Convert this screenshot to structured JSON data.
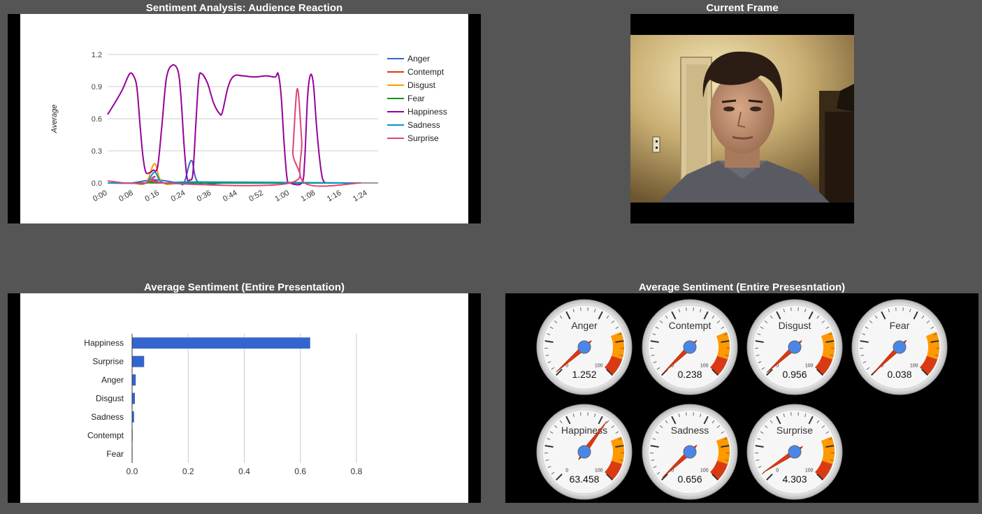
{
  "panels": {
    "line_title": "Sentiment Analysis: Audience Reaction",
    "frame_title": "Current Frame",
    "bar_title": "Average Sentiment (Entire Presentation)",
    "gauge_title": "Average Sentiment (Entire Presesntation)"
  },
  "colors": {
    "Anger": "#3366cc",
    "Contempt": "#dc3912",
    "Disgust": "#ff9900",
    "Fear": "#109618",
    "Happiness": "#990099",
    "Sadness": "#0099c6",
    "Surprise": "#dd4477",
    "bar": "#3366cc"
  },
  "chart_data": [
    {
      "type": "line",
      "title": "Sentiment Analysis: Audience Reaction",
      "ylabel": "Average",
      "xlabel": "",
      "ylim": [
        0,
        1.2
      ],
      "yticks": [
        "0.0",
        "0.3",
        "0.6",
        "0.9",
        "1.2"
      ],
      "xticks": [
        "0:00",
        "0:08",
        "0:16",
        "0:24",
        "0:36",
        "0:44",
        "0:52",
        "1:00",
        "1:08",
        "1:16",
        "1:24"
      ],
      "xrange_seconds": [
        0,
        92
      ],
      "legend_position": "right",
      "grid": true,
      "series": [
        {
          "name": "Anger",
          "points": [
            [
              0,
              0
            ],
            [
              8,
              0
            ],
            [
              16,
              0.03
            ],
            [
              24,
              0
            ],
            [
              26,
              0
            ],
            [
              28.5,
              0.21
            ],
            [
              31,
              0
            ],
            [
              40,
              0
            ],
            [
              60,
              0
            ],
            [
              70,
              0
            ],
            [
              74,
              0
            ],
            [
              78,
              0
            ],
            [
              86,
              0
            ]
          ]
        },
        {
          "name": "Contempt",
          "points": [
            [
              0,
              0
            ],
            [
              8,
              0
            ],
            [
              13,
              0
            ],
            [
              16,
              0.02
            ],
            [
              19,
              0
            ],
            [
              30,
              0
            ],
            [
              86,
              0
            ]
          ]
        },
        {
          "name": "Disgust",
          "points": [
            [
              0,
              0
            ],
            [
              8,
              0
            ],
            [
              13,
              0
            ],
            [
              16,
              0.18
            ],
            [
              19,
              0
            ],
            [
              30,
              0
            ],
            [
              86,
              0
            ]
          ]
        },
        {
          "name": "Fear",
          "points": [
            [
              0,
              0
            ],
            [
              13,
              0
            ],
            [
              16,
              0.01
            ],
            [
              19,
              0
            ],
            [
              86,
              0
            ]
          ]
        },
        {
          "name": "Happiness",
          "points": [
            [
              0,
              0.64
            ],
            [
              2.5,
              0.75
            ],
            [
              5,
              0.87
            ],
            [
              7.5,
              1.02
            ],
            [
              9,
              0.99
            ],
            [
              10,
              0.88
            ],
            [
              11,
              0.55
            ],
            [
              12,
              0.25
            ],
            [
              13,
              0.1
            ],
            [
              14.5,
              0.1
            ],
            [
              15.5,
              0.12
            ],
            [
              17,
              0.15
            ],
            [
              18.5,
              0.55
            ],
            [
              20,
              0.98
            ],
            [
              22,
              1.1
            ],
            [
              24,
              1.04
            ],
            [
              25,
              0.78
            ],
            [
              26,
              0.35
            ],
            [
              27,
              0.05
            ],
            [
              28,
              0.03
            ],
            [
              29,
              0.09
            ],
            [
              30,
              0.55
            ],
            [
              31,
              0.97
            ],
            [
              32,
              1.02
            ],
            [
              34,
              0.93
            ],
            [
              36,
              0.75
            ],
            [
              38,
              0.65
            ],
            [
              39,
              0.66
            ],
            [
              41,
              0.9
            ],
            [
              43,
              1.0
            ],
            [
              46,
              1.0
            ],
            [
              50,
              0.99
            ],
            [
              54,
              1.0
            ],
            [
              57,
              0.99
            ],
            [
              58,
              1.02
            ],
            [
              59,
              0.82
            ],
            [
              60,
              0.38
            ],
            [
              61,
              0.05
            ],
            [
              62,
              0
            ],
            [
              66,
              0
            ],
            [
              67,
              0.2
            ],
            [
              68,
              0.8
            ],
            [
              69,
              1.01
            ],
            [
              70,
              0.92
            ],
            [
              71,
              0.55
            ],
            [
              72,
              0.25
            ],
            [
              73,
              0.05
            ],
            [
              74,
              0
            ]
          ]
        },
        {
          "name": "Sadness",
          "points": [
            [
              0,
              0
            ],
            [
              8,
              0
            ],
            [
              13,
              0
            ],
            [
              16,
              0.1
            ],
            [
              19,
              0
            ],
            [
              29,
              0.01
            ],
            [
              86,
              0
            ]
          ]
        },
        {
          "name": "Surprise",
          "points": [
            [
              0,
              0.02
            ],
            [
              6,
              0
            ],
            [
              13,
              0
            ],
            [
              16,
              0.06
            ],
            [
              19,
              0
            ],
            [
              62,
              0
            ],
            [
              63,
              0.3
            ],
            [
              64.5,
              0.88
            ],
            [
              66,
              0.4
            ],
            [
              67,
              0
            ],
            [
              86,
              0
            ]
          ]
        }
      ]
    },
    {
      "type": "bar",
      "orientation": "horizontal",
      "title": "Average Sentiment (Entire Presentation)",
      "categories": [
        "Happiness",
        "Surprise",
        "Anger",
        "Disgust",
        "Sadness",
        "Contempt",
        "Fear"
      ],
      "values": [
        0.635,
        0.043,
        0.013,
        0.01,
        0.007,
        0.002,
        0.0004
      ],
      "xlim": [
        0,
        0.8
      ],
      "xticks": [
        "0.0",
        "0.2",
        "0.4",
        "0.6",
        "0.8"
      ],
      "grid": true
    }
  ],
  "gauges": [
    {
      "label": "Anger",
      "value": "1.252",
      "level": 1.252
    },
    {
      "label": "Contempt",
      "value": "0.238",
      "level": 0.238
    },
    {
      "label": "Disgust",
      "value": "0.956",
      "level": 0.956
    },
    {
      "label": "Fear",
      "value": "0.038",
      "level": 0.038
    },
    {
      "label": "Happiness",
      "value": "63.458",
      "level": 63.458
    },
    {
      "label": "Sadness",
      "value": "0.656",
      "level": 0.656
    },
    {
      "label": "Surprise",
      "value": "4.303",
      "level": 4.303
    }
  ],
  "gauge_scale": {
    "min_label": "0",
    "max_label": "100",
    "min": 0,
    "max": 100
  }
}
